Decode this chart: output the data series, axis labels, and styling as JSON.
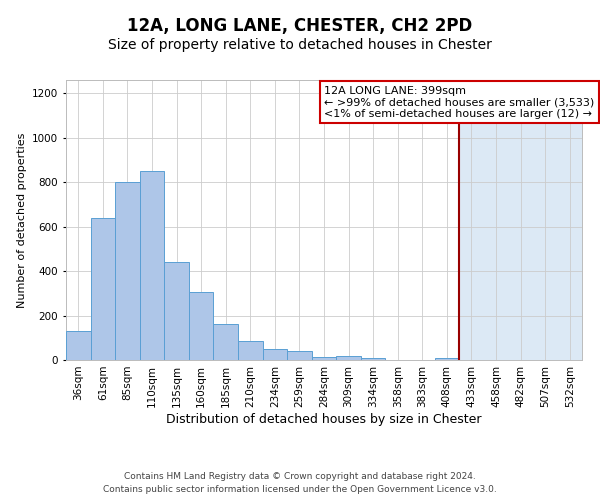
{
  "title": "12A, LONG LANE, CHESTER, CH2 2PD",
  "subtitle": "Size of property relative to detached houses in Chester",
  "xlabel": "Distribution of detached houses by size in Chester",
  "ylabel": "Number of detached properties",
  "categories": [
    "36sqm",
    "61sqm",
    "85sqm",
    "110sqm",
    "135sqm",
    "160sqm",
    "185sqm",
    "210sqm",
    "234sqm",
    "259sqm",
    "284sqm",
    "309sqm",
    "334sqm",
    "358sqm",
    "383sqm",
    "408sqm",
    "433sqm",
    "458sqm",
    "482sqm",
    "507sqm",
    "532sqm"
  ],
  "bar_values": [
    130,
    640,
    800,
    850,
    440,
    305,
    160,
    85,
    50,
    40,
    15,
    20,
    10,
    0,
    0,
    10,
    0,
    0,
    0,
    0,
    0
  ],
  "bar_color": "#aec6e8",
  "bar_edge_color": "#5a9fd4",
  "ylim": [
    0,
    1260
  ],
  "yticks": [
    0,
    200,
    400,
    600,
    800,
    1000,
    1200
  ],
  "vline_index": 15,
  "vline_color": "#990000",
  "bg_left_color": "#ffffff",
  "bg_right_color": "#dce9f5",
  "grid_color": "#cccccc",
  "annotation_title": "12A LONG LANE: 399sqm",
  "annotation_line1": "← >99% of detached houses are smaller (3,533)",
  "annotation_line2": "<1% of semi-detached houses are larger (12) →",
  "annotation_box_color": "#cc0000",
  "footer_line1": "Contains HM Land Registry data © Crown copyright and database right 2024.",
  "footer_line2": "Contains public sector information licensed under the Open Government Licence v3.0.",
  "title_fontsize": 12,
  "subtitle_fontsize": 10,
  "xlabel_fontsize": 9,
  "ylabel_fontsize": 8,
  "tick_fontsize": 7.5,
  "annotation_fontsize": 8,
  "footer_fontsize": 6.5
}
